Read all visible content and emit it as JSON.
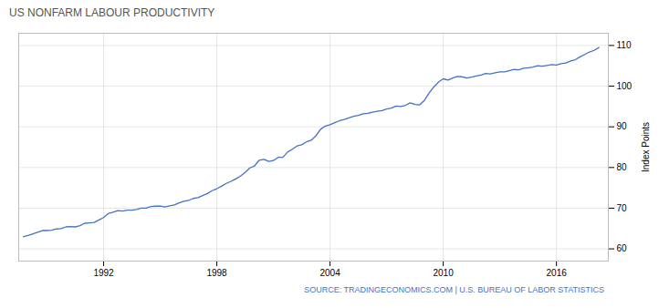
{
  "chart_data": {
    "type": "line",
    "title": "US NONFARM LABOUR PRODUCTIVITY",
    "y_label": "Index Points",
    "annotations": [
      "SOURCE: TRADINGECONOMICS.COM | U.S. BUREAU OF LABOR STATISTICS"
    ],
    "color": "#4472c4",
    "xlim": [
      1987.5,
      2018.75
    ],
    "xticks": [
      1992,
      1998,
      2004,
      2010,
      2016
    ],
    "ylim": [
      57,
      113
    ],
    "yticks": [
      60,
      70,
      80,
      90,
      100,
      110
    ],
    "grid": true,
    "x": [
      1987.75,
      1988.0,
      1988.25,
      1988.5,
      1988.75,
      1989.0,
      1989.25,
      1989.5,
      1989.75,
      1990.0,
      1990.25,
      1990.5,
      1990.75,
      1991.0,
      1991.25,
      1991.5,
      1991.75,
      1992.0,
      1992.25,
      1992.5,
      1992.75,
      1993.0,
      1993.25,
      1993.5,
      1993.75,
      1994.0,
      1994.25,
      1994.5,
      1994.75,
      1995.0,
      1995.25,
      1995.5,
      1995.75,
      1996.0,
      1996.25,
      1996.5,
      1996.75,
      1997.0,
      1997.25,
      1997.5,
      1997.75,
      1998.0,
      1998.25,
      1998.5,
      1998.75,
      1999.0,
      1999.25,
      1999.5,
      1999.75,
      2000.0,
      2000.25,
      2000.5,
      2000.75,
      2001.0,
      2001.25,
      2001.5,
      2001.75,
      2002.0,
      2002.25,
      2002.5,
      2002.75,
      2003.0,
      2003.25,
      2003.5,
      2003.75,
      2004.0,
      2004.25,
      2004.5,
      2004.75,
      2005.0,
      2005.25,
      2005.5,
      2005.75,
      2006.0,
      2006.25,
      2006.5,
      2006.75,
      2007.0,
      2007.25,
      2007.5,
      2007.75,
      2008.0,
      2008.25,
      2008.5,
      2008.75,
      2009.0,
      2009.25,
      2009.5,
      2009.75,
      2010.0,
      2010.25,
      2010.5,
      2010.75,
      2011.0,
      2011.25,
      2011.5,
      2011.75,
      2012.0,
      2012.25,
      2012.5,
      2012.75,
      2013.0,
      2013.25,
      2013.5,
      2013.75,
      2014.0,
      2014.25,
      2014.5,
      2014.75,
      2015.0,
      2015.25,
      2015.5,
      2015.75,
      2016.0,
      2016.25,
      2016.5,
      2016.75,
      2017.0,
      2017.25,
      2017.5,
      2017.75,
      2018.0,
      2018.25
    ],
    "values": [
      63.0,
      63.3,
      63.7,
      64.1,
      64.5,
      64.5,
      64.6,
      64.9,
      65.0,
      65.4,
      65.5,
      65.4,
      65.7,
      66.3,
      66.4,
      66.5,
      67.1,
      67.7,
      68.7,
      69.0,
      69.4,
      69.3,
      69.5,
      69.5,
      69.7,
      70.0,
      70.0,
      70.4,
      70.5,
      70.5,
      70.3,
      70.6,
      70.8,
      71.3,
      71.7,
      71.9,
      72.4,
      72.6,
      73.1,
      73.6,
      74.3,
      74.8,
      75.4,
      76.1,
      76.6,
      77.2,
      77.9,
      78.8,
      79.9,
      80.4,
      81.8,
      82.0,
      81.5,
      81.7,
      82.5,
      82.5,
      83.8,
      84.5,
      85.3,
      85.6,
      86.3,
      86.7,
      87.8,
      89.4,
      90.2,
      90.5,
      91.0,
      91.5,
      91.8,
      92.2,
      92.6,
      92.8,
      93.2,
      93.3,
      93.6,
      93.8,
      94.0,
      94.4,
      94.6,
      95.1,
      95.0,
      95.3,
      95.9,
      95.5,
      95.4,
      96.5,
      98.3,
      99.8,
      101.0,
      101.8,
      101.5,
      102.0,
      102.4,
      102.3,
      102.0,
      102.2,
      102.5,
      102.7,
      103.1,
      103.0,
      103.3,
      103.5,
      103.5,
      103.8,
      104.1,
      104.0,
      104.4,
      104.5,
      104.7,
      105.0,
      104.9,
      105.1,
      105.3,
      105.2,
      105.5,
      105.7,
      106.2,
      106.5,
      107.2,
      107.8,
      108.4,
      108.8,
      109.5
    ]
  }
}
